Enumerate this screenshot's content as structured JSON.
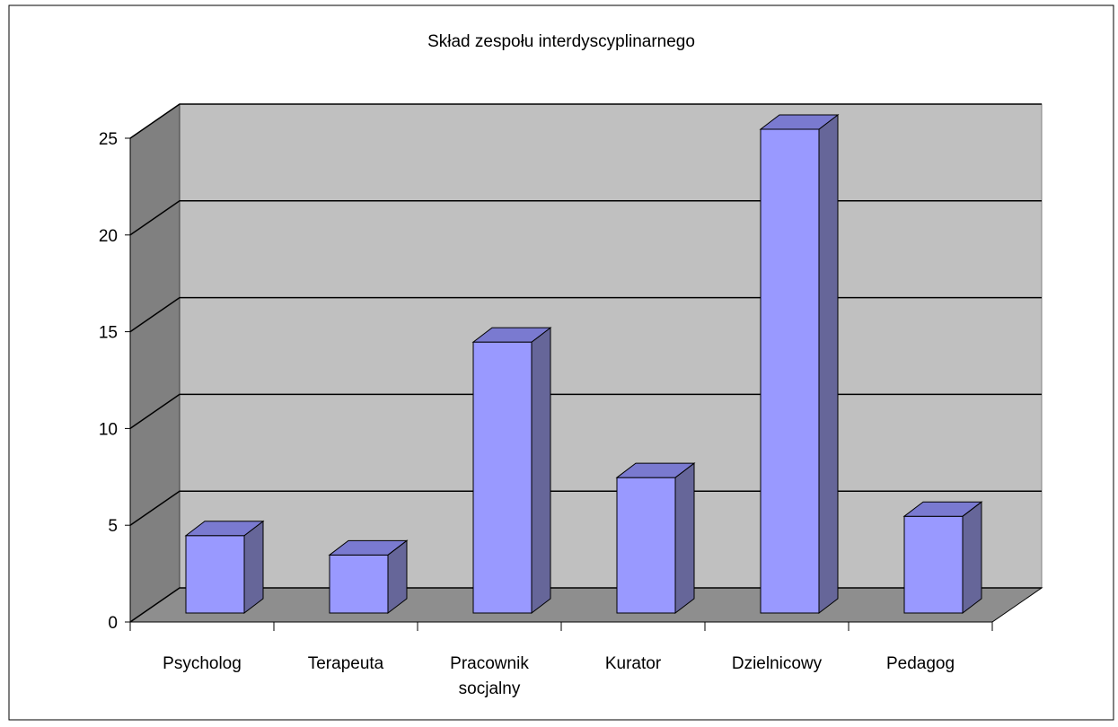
{
  "chart_data": {
    "type": "bar3d",
    "title": "Skład zespołu interdyscyplinarnego",
    "categories": [
      "Psycholog",
      "Terapeuta",
      "Pracownik socjalny",
      "Kurator",
      "Dzielnicowy",
      "Pedagog"
    ],
    "values": [
      4,
      3,
      14,
      7,
      25,
      5
    ],
    "color": "#9999ff",
    "ylim": [
      0,
      25
    ],
    "yticks": [
      0,
      5,
      10,
      15,
      20,
      25
    ],
    "grid": true
  }
}
